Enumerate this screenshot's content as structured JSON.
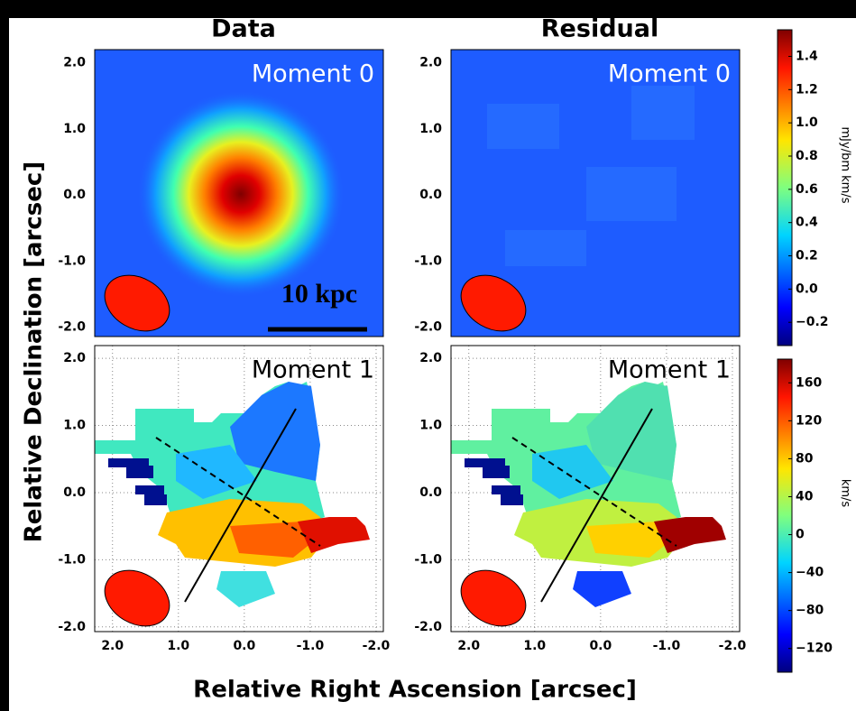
{
  "figure": {
    "xlabel": "Relative Right Ascension [arcsec]",
    "ylabel": "Relative Declination [arcsec]",
    "scale_bar": "10 kpc"
  },
  "chart_data": [
    {
      "type": "heatmap",
      "title": "Data",
      "annotation": "Moment 0",
      "ylim": [
        -2.14,
        2.2
      ],
      "yticks": [
        {
          "value": 2,
          "label": "2.0"
        },
        {
          "value": 1,
          "label": "1.0"
        },
        {
          "value": 0,
          "label": "0.0"
        },
        {
          "value": -1,
          "label": "-1.0"
        },
        {
          "value": -2,
          "label": "-2.0"
        }
      ],
      "grid": false
    },
    {
      "type": "heatmap",
      "title": "Residual",
      "annotation": "Moment 0",
      "ylim": [
        -2.14,
        2.2
      ],
      "yticks": [
        {
          "value": 2,
          "label": "2.0"
        },
        {
          "value": 1,
          "label": "1.0"
        },
        {
          "value": 0,
          "label": "0.0"
        },
        {
          "value": -1,
          "label": "-1.0"
        },
        {
          "value": -2,
          "label": "-2.0"
        }
      ],
      "grid": false
    },
    {
      "type": "heatmap",
      "annotation": "Moment 1",
      "ylim": [
        -2.07,
        2.19
      ],
      "xlim": [
        2.27,
        -2.11
      ],
      "yticks": [
        {
          "value": 2,
          "label": "2.0"
        },
        {
          "value": 1,
          "label": "1.0"
        },
        {
          "value": 0,
          "label": "0.0"
        },
        {
          "value": -1,
          "label": "-1.0"
        },
        {
          "value": -2,
          "label": "-2.0"
        }
      ],
      "xticks": [
        {
          "value": 2,
          "label": "2.0"
        },
        {
          "value": 1,
          "label": "1.0"
        },
        {
          "value": 0,
          "label": "0.0"
        },
        {
          "value": -1,
          "label": "-1.0"
        },
        {
          "value": -2,
          "label": "-2.0"
        }
      ],
      "grid": true
    },
    {
      "type": "heatmap",
      "annotation": "Moment 1",
      "ylim": [
        -2.07,
        2.19
      ],
      "xlim": [
        2.27,
        -2.11
      ],
      "yticks": [
        {
          "value": 2,
          "label": "2.0"
        },
        {
          "value": 1,
          "label": "1.0"
        },
        {
          "value": 0,
          "label": "0.0"
        },
        {
          "value": -1,
          "label": "-1.0"
        },
        {
          "value": -2,
          "label": "-2.0"
        }
      ],
      "xticks": [
        {
          "value": 2,
          "label": "2.0"
        },
        {
          "value": 1,
          "label": "1.0"
        },
        {
          "value": 0,
          "label": "0.0"
        },
        {
          "value": -1,
          "label": "-1.0"
        },
        {
          "value": -2,
          "label": "-2.0"
        }
      ],
      "grid": true
    },
    {
      "type": "colorbar",
      "label": "mJy/bm km/s",
      "clim": [
        -0.34,
        1.56
      ],
      "ticks": [
        1.4,
        1.2,
        {
          "value": 1,
          "label": "1.0"
        },
        0.8,
        0.6,
        0.4,
        0.2,
        {
          "value": 0,
          "label": "0.0"
        },
        {
          "value": -0.2,
          "label": "−0.2"
        }
      ]
    },
    {
      "type": "colorbar",
      "label": "km/s",
      "clim": [
        -145,
        185
      ],
      "ticks": [
        160,
        120,
        80,
        40,
        0,
        {
          "value": -40,
          "label": "−40"
        },
        {
          "value": -80,
          "label": "−80"
        },
        {
          "value": -120,
          "label": "−120"
        }
      ]
    }
  ]
}
